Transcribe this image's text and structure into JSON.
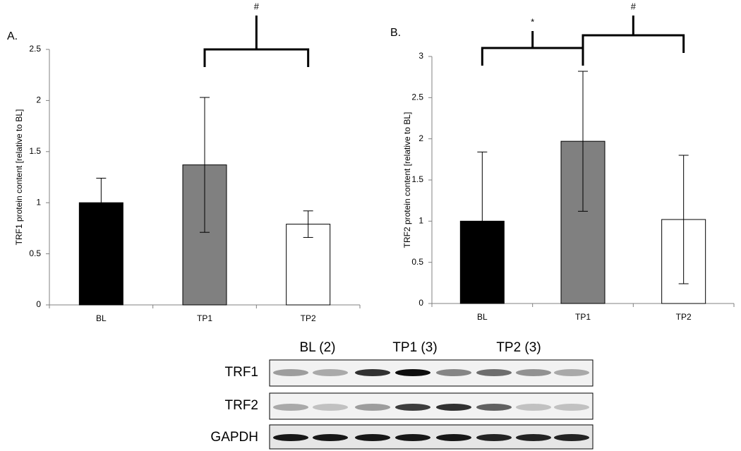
{
  "chart_data": [
    {
      "type": "bar",
      "panel": "A.",
      "y_label": "TRF1 protein content [relative to BL]",
      "categories": [
        "BL",
        "TP1",
        "TP2"
      ],
      "values": [
        1.0,
        1.37,
        0.79
      ],
      "errors": [
        0.24,
        0.66,
        0.13
      ],
      "colors": [
        "#000000",
        "#808080",
        "#ffffff"
      ],
      "ylim": [
        0,
        2.5
      ],
      "yticks": [
        0,
        0.5,
        1,
        1.5,
        2,
        2.5
      ],
      "significance": [
        {
          "label": "#",
          "between": [
            "TP1",
            "TP2"
          ]
        }
      ]
    },
    {
      "type": "bar",
      "panel": "B.",
      "y_label": "TRF2 protein content [relative to BL]",
      "categories": [
        "BL",
        "TP1",
        "TP2"
      ],
      "values": [
        1.0,
        1.97,
        1.02
      ],
      "errors": [
        0.84,
        0.85,
        0.78
      ],
      "colors": [
        "#000000",
        "#808080",
        "#ffffff"
      ],
      "ylim": [
        0,
        3
      ],
      "yticks": [
        0,
        0.5,
        1,
        1.5,
        2,
        2.5,
        3
      ],
      "significance": [
        {
          "label": "*",
          "between": [
            "BL",
            "TP1"
          ]
        },
        {
          "label": "#",
          "between": [
            "TP1",
            "TP2"
          ]
        }
      ]
    }
  ],
  "blot": {
    "groups": [
      "BL (2)",
      "TP1 (3)",
      "TP2 (3)"
    ],
    "rows": [
      "TRF1",
      "TRF2",
      "GAPDH"
    ]
  }
}
